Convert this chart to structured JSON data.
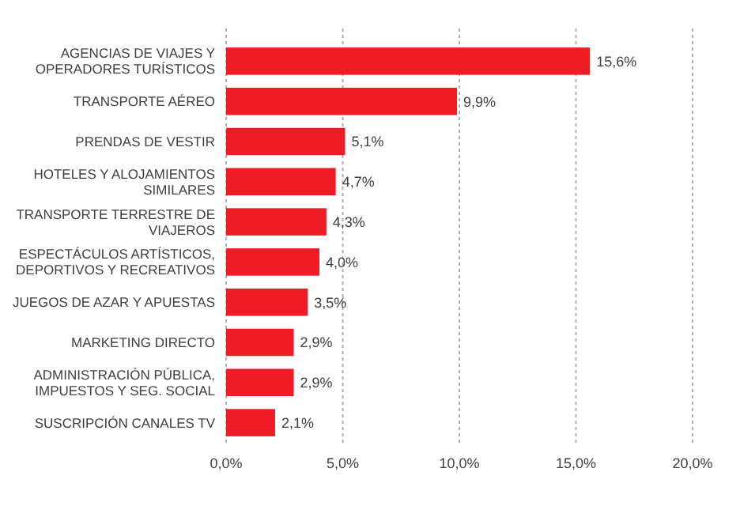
{
  "chart_data": {
    "type": "bar",
    "orientation": "horizontal",
    "categories": [
      "AGENCIAS DE VIAJES Y\nOPERADORES TURÍSTICOS",
      "TRANSPORTE AÉREO",
      "PRENDAS DE VESTIR",
      "HOTELES  Y ALOJAMIENTOS\nSIMILARES",
      "TRANSPORTE TERRESTRE DE\nVIAJEROS",
      "ESPECTÁCULOS ARTÍSTICOS,\nDEPORTIVOS Y RECREATIVOS",
      "JUEGOS DE AZAR Y APUESTAS",
      "MARKETING DIRECTO",
      "ADMINISTRACIÓN PÚBLICA,\nIMPUESTOS Y SEG. SOCIAL",
      "SUSCRIPCIÓN CANALES TV"
    ],
    "values": [
      15.6,
      9.9,
      5.1,
      4.7,
      4.3,
      4.0,
      3.5,
      2.9,
      2.9,
      2.1
    ],
    "value_labels": [
      "15,6%",
      "9,9%",
      "5,1%",
      "4,7%",
      "4,3%",
      "4,0%",
      "3,5%",
      "2,9%",
      "2,9%",
      "2,1%"
    ],
    "color": "#ee1c25",
    "xlim": [
      0,
      20
    ],
    "xticks": [
      {
        "value": 0,
        "label": "0,0%"
      },
      {
        "value": 5,
        "label": "5,0%"
      },
      {
        "value": 10,
        "label": "10,0%"
      },
      {
        "value": 15,
        "label": "15,0%"
      },
      {
        "value": 20,
        "label": "20,0%"
      }
    ],
    "grid": "x"
  }
}
